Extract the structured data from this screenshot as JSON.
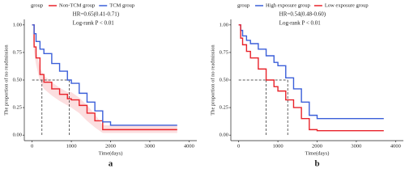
{
  "chart_data": [
    {
      "type": "line",
      "panel": "a",
      "legend_title": "group",
      "annotations": [
        "HR=0.65(0.41-0.71)",
        "Log-rank P < 0.01"
      ],
      "xlabel": "Time(days)",
      "ylabel": "The proportion of no readmission",
      "x": [
        0,
        50,
        100,
        200,
        300,
        500,
        700,
        900,
        1000,
        1200,
        1400,
        1600,
        1800,
        2000,
        2500,
        3000,
        3700
      ],
      "series": [
        {
          "name": "Non-TCM group",
          "color": "#e8222a",
          "values": [
            1,
            0.8,
            0.7,
            0.55,
            0.48,
            0.42,
            0.37,
            0.33,
            0.32,
            0.27,
            0.2,
            0.13,
            0.05,
            0.05,
            0.05,
            0.05,
            0.05
          ],
          "lower": [
            1,
            0.75,
            0.64,
            0.49,
            0.42,
            0.36,
            0.31,
            0.27,
            0.25,
            0.2,
            0.13,
            0.07,
            0.02,
            0.02,
            0.02,
            0.02,
            0.02
          ],
          "upper": [
            1,
            0.85,
            0.76,
            0.61,
            0.54,
            0.48,
            0.43,
            0.39,
            0.39,
            0.34,
            0.27,
            0.19,
            0.09,
            0.09,
            0.09,
            0.09,
            0.09
          ]
        },
        {
          "name": "TCM group",
          "color": "#3b5fd9",
          "values": [
            1,
            0.92,
            0.85,
            0.78,
            0.74,
            0.65,
            0.58,
            0.5,
            0.47,
            0.38,
            0.3,
            0.22,
            0.12,
            0.09,
            0.09,
            0.09,
            0.09
          ]
        }
      ],
      "medians": [
        250,
        950
      ],
      "xlim": [
        -200,
        4200
      ],
      "xticks": [
        0,
        1000,
        2000,
        3000,
        4000
      ],
      "ylim": [
        -0.05,
        1.05
      ],
      "yticks": [
        {
          "value": 0,
          "label": "0.00"
        },
        {
          "value": 0.25,
          "label": "0.25"
        },
        {
          "value": 0.5,
          "label": "0.50"
        },
        {
          "value": 0.75,
          "label": "0.75"
        },
        {
          "value": 1,
          "label": "1.00"
        }
      ]
    },
    {
      "type": "line",
      "panel": "b",
      "legend_title": "group",
      "annotations": [
        "HR=0.54(0.48-0.60)",
        "Log-rank P < 0.01"
      ],
      "xlabel": "Time(days)",
      "ylabel": "The proportion of no readmission",
      "x": [
        0,
        50,
        100,
        200,
        300,
        500,
        700,
        900,
        1000,
        1200,
        1400,
        1600,
        1800,
        2000,
        2500,
        3000,
        3700
      ],
      "series": [
        {
          "name": "High exposure group",
          "color": "#3b5fd9",
          "values": [
            1,
            0.95,
            0.9,
            0.86,
            0.83,
            0.78,
            0.72,
            0.66,
            0.63,
            0.52,
            0.42,
            0.3,
            0.18,
            0.15,
            0.15,
            0.15,
            0.15
          ]
        },
        {
          "name": "Low exposure group",
          "color": "#e8222a",
          "values": [
            1,
            0.88,
            0.82,
            0.76,
            0.7,
            0.6,
            0.5,
            0.44,
            0.4,
            0.32,
            0.25,
            0.15,
            0.05,
            0.04,
            0.04,
            0.04,
            0.04
          ]
        }
      ],
      "medians": [
        700,
        1250
      ],
      "xlim": [
        -200,
        4200
      ],
      "xticks": [
        0,
        1000,
        2000,
        3000,
        4000
      ],
      "ylim": [
        -0.05,
        1.05
      ],
      "yticks": [
        {
          "value": 0,
          "label": "0.00"
        },
        {
          "value": 0.25,
          "label": "0.25"
        },
        {
          "value": 0.5,
          "label": "0.50"
        },
        {
          "value": 0.75,
          "label": "0.75"
        },
        {
          "value": 1,
          "label": "1.00"
        }
      ]
    }
  ]
}
